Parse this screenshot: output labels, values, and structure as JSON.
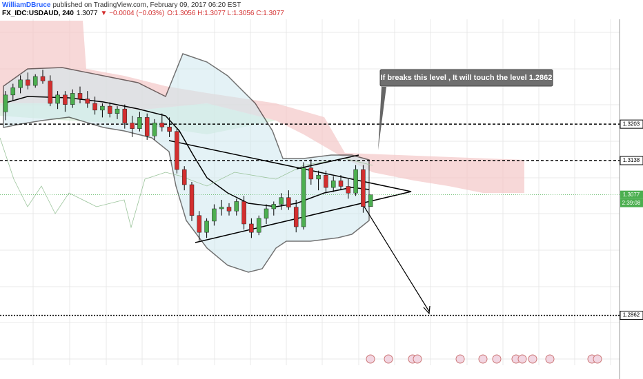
{
  "chart_data": {
    "type": "candlestick",
    "author": "WilliamDBruce",
    "published": "published on TradingView.com, February 09, 2017 06:20 EST",
    "symbol": "FX_IDC:USDAUD, 240",
    "last": "1.3077",
    "change": "▼ −0.0004 (−0.03%)",
    "ohlc_header": "O:1.3056 H:1.3077 L:1.3056 C:1.3077",
    "annotation": "If breaks this level , It will touch the level 1.2862",
    "countdown": "2:39:08",
    "up_color": "#4caf50",
    "down_color": "#d32f2f",
    "ylim": [
      1.2773,
      1.339
    ],
    "yticks": [
      1.3203,
      1.3138,
      1.3077,
      1.2862
    ],
    "candles": [
      {
        "o": 1.3225,
        "h": 1.3262,
        "l": 1.321,
        "c": 1.3255
      },
      {
        "o": 1.3255,
        "h": 1.3275,
        "l": 1.3245,
        "c": 1.3268
      },
      {
        "o": 1.3268,
        "h": 1.329,
        "l": 1.3258,
        "c": 1.3282
      },
      {
        "o": 1.3282,
        "h": 1.3295,
        "l": 1.3265,
        "c": 1.3272
      },
      {
        "o": 1.3272,
        "h": 1.3292,
        "l": 1.3268,
        "c": 1.3288
      },
      {
        "o": 1.3288,
        "h": 1.33,
        "l": 1.3275,
        "c": 1.328
      },
      {
        "o": 1.328,
        "h": 1.329,
        "l": 1.3235,
        "c": 1.324
      },
      {
        "o": 1.324,
        "h": 1.3262,
        "l": 1.323,
        "c": 1.3255
      },
      {
        "o": 1.3255,
        "h": 1.3262,
        "l": 1.3225,
        "c": 1.3238
      },
      {
        "o": 1.3238,
        "h": 1.3265,
        "l": 1.3232,
        "c": 1.3258
      },
      {
        "o": 1.3258,
        "h": 1.327,
        "l": 1.324,
        "c": 1.3248
      },
      {
        "o": 1.3248,
        "h": 1.3262,
        "l": 1.3232,
        "c": 1.324
      },
      {
        "o": 1.324,
        "h": 1.3252,
        "l": 1.322,
        "c": 1.3228
      },
      {
        "o": 1.3228,
        "h": 1.324,
        "l": 1.3215,
        "c": 1.3235
      },
      {
        "o": 1.3235,
        "h": 1.3242,
        "l": 1.3215,
        "c": 1.3222
      },
      {
        "o": 1.3222,
        "h": 1.3235,
        "l": 1.3212,
        "c": 1.323
      },
      {
        "o": 1.323,
        "h": 1.3238,
        "l": 1.3195,
        "c": 1.3205
      },
      {
        "o": 1.3205,
        "h": 1.3218,
        "l": 1.318,
        "c": 1.3195
      },
      {
        "o": 1.3195,
        "h": 1.3225,
        "l": 1.319,
        "c": 1.3215
      },
      {
        "o": 1.3215,
        "h": 1.3222,
        "l": 1.3175,
        "c": 1.3182
      },
      {
        "o": 1.3182,
        "h": 1.3212,
        "l": 1.3175,
        "c": 1.3205
      },
      {
        "o": 1.3205,
        "h": 1.3222,
        "l": 1.319,
        "c": 1.3198
      },
      {
        "o": 1.3198,
        "h": 1.3215,
        "l": 1.318,
        "c": 1.319
      },
      {
        "o": 1.319,
        "h": 1.3195,
        "l": 1.3115,
        "c": 1.3122
      },
      {
        "o": 1.3122,
        "h": 1.3128,
        "l": 1.3085,
        "c": 1.3095
      },
      {
        "o": 1.3095,
        "h": 1.31,
        "l": 1.303,
        "c": 1.304
      },
      {
        "o": 1.304,
        "h": 1.3048,
        "l": 1.2995,
        "c": 1.301
      },
      {
        "o": 1.301,
        "h": 1.3035,
        "l": 1.3,
        "c": 1.303
      },
      {
        "o": 1.303,
        "h": 1.306,
        "l": 1.3022,
        "c": 1.3052
      },
      {
        "o": 1.3052,
        "h": 1.3068,
        "l": 1.304,
        "c": 1.3055
      },
      {
        "o": 1.3055,
        "h": 1.3062,
        "l": 1.304,
        "c": 1.3048
      },
      {
        "o": 1.3048,
        "h": 1.307,
        "l": 1.304,
        "c": 1.3065
      },
      {
        "o": 1.3065,
        "h": 1.3075,
        "l": 1.3015,
        "c": 1.3025
      },
      {
        "o": 1.3025,
        "h": 1.3035,
        "l": 1.3,
        "c": 1.301
      },
      {
        "o": 1.301,
        "h": 1.304,
        "l": 1.3005,
        "c": 1.3035
      },
      {
        "o": 1.3035,
        "h": 1.306,
        "l": 1.3025,
        "c": 1.3052
      },
      {
        "o": 1.3052,
        "h": 1.3065,
        "l": 1.304,
        "c": 1.306
      },
      {
        "o": 1.306,
        "h": 1.308,
        "l": 1.305,
        "c": 1.3072
      },
      {
        "o": 1.3072,
        "h": 1.3085,
        "l": 1.305,
        "c": 1.3055
      },
      {
        "o": 1.3055,
        "h": 1.3068,
        "l": 1.301,
        "c": 1.302
      },
      {
        "o": 1.302,
        "h": 1.3135,
        "l": 1.3015,
        "c": 1.3125
      },
      {
        "o": 1.3125,
        "h": 1.314,
        "l": 1.3095,
        "c": 1.3105
      },
      {
        "o": 1.3105,
        "h": 1.312,
        "l": 1.3085,
        "c": 1.3112
      },
      {
        "o": 1.3112,
        "h": 1.312,
        "l": 1.308,
        "c": 1.309
      },
      {
        "o": 1.309,
        "h": 1.311,
        "l": 1.3082,
        "c": 1.3102
      },
      {
        "o": 1.3102,
        "h": 1.3112,
        "l": 1.3085,
        "c": 1.3092
      },
      {
        "o": 1.3092,
        "h": 1.3105,
        "l": 1.307,
        "c": 1.308
      },
      {
        "o": 1.308,
        "h": 1.313,
        "l": 1.3075,
        "c": 1.3122
      },
      {
        "o": 1.3122,
        "h": 1.313,
        "l": 1.3045,
        "c": 1.3056
      },
      {
        "o": 1.3056,
        "h": 1.3077,
        "l": 1.3056,
        "c": 1.3077
      }
    ]
  }
}
